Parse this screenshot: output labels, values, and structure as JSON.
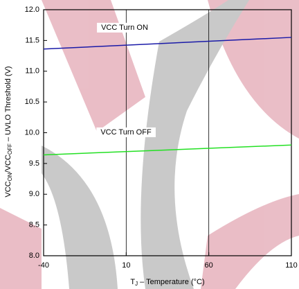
{
  "chart_data": {
    "type": "line",
    "x": [
      -40,
      110
    ],
    "series": [
      {
        "name": "VCC Turn ON",
        "color": "#1a1aa8",
        "values": [
          11.36,
          11.55
        ]
      },
      {
        "name": "VCC Turn OFF",
        "color": "#22e022",
        "values": [
          9.64,
          9.8
        ]
      }
    ],
    "xlim": [
      -40,
      110
    ],
    "xticks": [
      -40,
      10,
      60,
      110
    ],
    "ylim": [
      8,
      12
    ],
    "yticks": [
      {
        "value": 8,
        "label": "8.0"
      },
      8.5,
      {
        "value": 9,
        "label": "9.0"
      },
      9.5,
      {
        "value": 10,
        "label": "10.0"
      },
      10.5,
      {
        "value": 11,
        "label": "11.0"
      },
      11.5,
      {
        "value": 12,
        "label": "12.0"
      }
    ],
    "grid": "x",
    "xlabel_parts": [
      "T",
      "J",
      " – Temperature (°C)"
    ],
    "ylabel_parts": [
      "VCC",
      "ON",
      "/VCC",
      "OFF",
      " – UVLO Threshold (V)"
    ]
  }
}
